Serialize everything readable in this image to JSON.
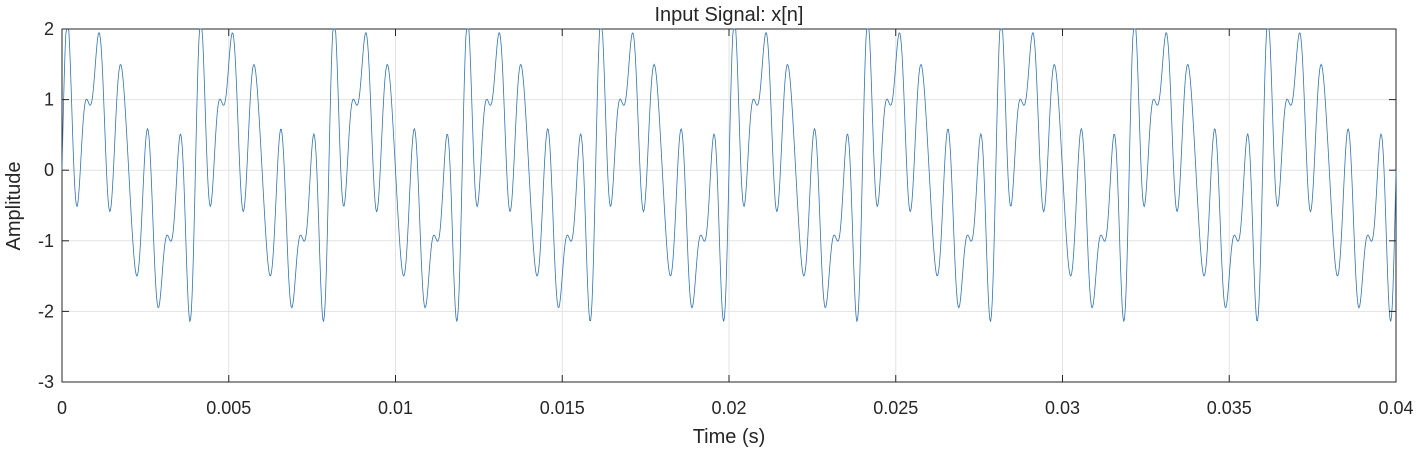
{
  "chart_data": {
    "type": "line",
    "title": "Input Signal: x[n]",
    "xlabel": "Time (s)",
    "ylabel": "Amplitude",
    "xlim": [
      0,
      0.04
    ],
    "ylim": [
      -3,
      2
    ],
    "xticks": [
      0,
      0.005,
      0.01,
      0.015,
      0.02,
      0.025,
      0.03,
      0.035,
      0.04
    ],
    "xtick_labels": [
      "0",
      "0.005",
      "0.01",
      "0.015",
      "0.02",
      "0.025",
      "0.03",
      "0.035",
      "0.04"
    ],
    "yticks": [
      -3,
      -2,
      -1,
      0,
      1,
      2
    ],
    "ytick_labels": [
      "-3",
      "-2",
      "-1",
      "0",
      "1",
      "2"
    ],
    "grid": true,
    "line_color": "#2e74b5",
    "series": [
      {
        "components": [
          {
            "amplitude": 1.0,
            "frequency_hz": 250
          },
          {
            "amplitude": 0.5,
            "frequency_hz": 2000
          },
          {
            "amplitude": 0.5,
            "frequency_hz": 1750
          },
          {
            "amplitude": 1.0,
            "frequency_hz": 1250
          }
        ],
        "sample_rate_hz": 44100,
        "duration_s": 0.04
      }
    ]
  }
}
